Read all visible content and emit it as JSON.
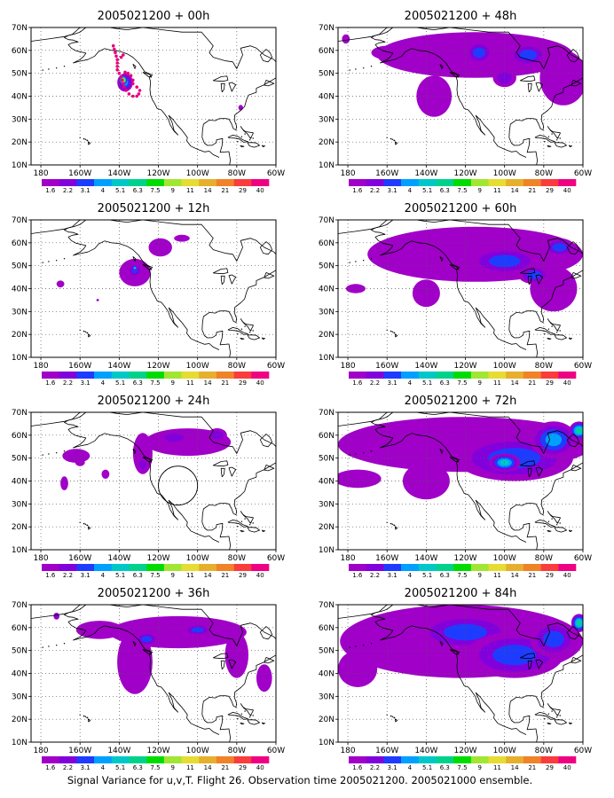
{
  "figure": {
    "caption": "Signal Variance for u,v,T. Flight 26. Observation time 2005021200. 2005021000 ensemble."
  },
  "colorbar": {
    "labels": [
      "1.6",
      "2.2",
      "3.1",
      "4",
      "5.1",
      "6.3",
      "7.5",
      "9",
      "11",
      "14",
      "21",
      "29",
      "40"
    ],
    "colors": [
      "#a000c8",
      "#8200dc",
      "#1e3cff",
      "#00a0ff",
      "#00c8c8",
      "#00d28c",
      "#00dc00",
      "#a0e632",
      "#e6dc32",
      "#e6af2d",
      "#f08228",
      "#fa3c3c",
      "#f00082"
    ]
  },
  "map": {
    "xticks": [
      "180",
      "160W",
      "140W",
      "120W",
      "100W",
      "80W",
      "60W"
    ],
    "yticks": [
      "10N",
      "20N",
      "30N",
      "40N",
      "50N",
      "60N",
      "70N"
    ],
    "lon_range": [
      -185,
      -60
    ],
    "lat_range": [
      10,
      70
    ],
    "grid": "dotted"
  },
  "chart_data": [
    {
      "type": "heatmap",
      "title": "2005021200 + 00h",
      "field": "signal variance",
      "blobs": [
        {
          "lon": -137,
          "lat": 46,
          "rlon": 4,
          "rlat": 4,
          "level": 4
        },
        {
          "lon": -138,
          "lat": 47,
          "rlon": 2,
          "rlat": 2,
          "level": 12
        },
        {
          "lon": -78,
          "lat": 35,
          "rlon": 1.2,
          "rlat": 1.2,
          "level": 1
        }
      ]
    },
    {
      "type": "heatmap",
      "title": "2005021200 + 12h",
      "field": "signal variance",
      "blobs": [
        {
          "lon": -132,
          "lat": 47,
          "rlon": 8,
          "rlat": 6,
          "level": 1
        },
        {
          "lon": -132,
          "lat": 48,
          "rlon": 3.5,
          "rlat": 3,
          "level": 3
        },
        {
          "lon": -132,
          "lat": 49,
          "rlon": 1.5,
          "rlat": 1.2,
          "level": 5
        },
        {
          "lon": -119,
          "lat": 58,
          "rlon": 6,
          "rlat": 4,
          "level": 1
        },
        {
          "lon": -108,
          "lat": 62,
          "rlon": 4,
          "rlat": 1.5,
          "level": 1
        },
        {
          "lon": -170,
          "lat": 42,
          "rlon": 2,
          "rlat": 1.5,
          "level": 1
        },
        {
          "lon": -151,
          "lat": 35,
          "rlon": 0.7,
          "rlat": 0.5,
          "level": 1
        }
      ]
    },
    {
      "type": "heatmap",
      "title": "2005021200 + 24h",
      "field": "signal variance",
      "blobs": [
        {
          "lon": -128,
          "lat": 52,
          "rlon": 5,
          "rlat": 9,
          "level": 1
        },
        {
          "lon": -105,
          "lat": 57,
          "rlon": 22,
          "rlat": 6,
          "level": 1
        },
        {
          "lon": -112,
          "lat": 59,
          "rlon": 8,
          "rlat": 3,
          "level": 2
        },
        {
          "lon": -90,
          "lat": 60,
          "rlon": 5,
          "rlat": 3,
          "level": 2
        },
        {
          "lon": -128,
          "lat": 47,
          "rlon": 3,
          "rlat": 3,
          "level": 2
        },
        {
          "lon": -162,
          "lat": 51,
          "rlon": 7,
          "rlat": 3,
          "level": 1
        },
        {
          "lon": -160,
          "lat": 48,
          "rlon": 2.5,
          "rlat": 1.5,
          "level": 1
        },
        {
          "lon": -168,
          "lat": 39,
          "rlon": 2,
          "rlat": 3,
          "level": 1
        },
        {
          "lon": -147,
          "lat": 43,
          "rlon": 2,
          "rlat": 2,
          "level": 1
        }
      ]
    },
    {
      "type": "heatmap",
      "title": "2005021200 + 36h",
      "field": "signal variance",
      "blobs": [
        {
          "lon": -110,
          "lat": 58,
          "rlon": 35,
          "rlat": 7,
          "level": 1
        },
        {
          "lon": -132,
          "lat": 45,
          "rlon": 9,
          "rlat": 14,
          "level": 1
        },
        {
          "lon": -150,
          "lat": 59,
          "rlon": 12,
          "rlat": 4,
          "level": 1
        },
        {
          "lon": -80,
          "lat": 48,
          "rlon": 6,
          "rlat": 10,
          "level": 1
        },
        {
          "lon": -66,
          "lat": 38,
          "rlon": 4,
          "rlat": 6,
          "level": 1
        },
        {
          "lon": -126,
          "lat": 55,
          "rlon": 6,
          "rlat": 3,
          "level": 3
        },
        {
          "lon": -100,
          "lat": 59,
          "rlon": 7,
          "rlat": 2.5,
          "level": 3
        },
        {
          "lon": -172,
          "lat": 65,
          "rlon": 1.5,
          "rlat": 1.5,
          "level": 2
        }
      ]
    },
    {
      "type": "heatmap",
      "title": "2005021200 + 48h",
      "field": "signal variance",
      "blobs": [
        {
          "lon": -115,
          "lat": 58,
          "rlon": 50,
          "rlat": 10,
          "level": 1
        },
        {
          "lon": -70,
          "lat": 48,
          "rlon": 12,
          "rlat": 12,
          "level": 1
        },
        {
          "lon": -136,
          "lat": 40,
          "rlon": 9,
          "rlat": 9,
          "level": 1
        },
        {
          "lon": -113,
          "lat": 59,
          "rlon": 7,
          "rlat": 5,
          "level": 3
        },
        {
          "lon": -88,
          "lat": 58,
          "rlon": 10,
          "rlat": 5,
          "level": 3
        },
        {
          "lon": -100,
          "lat": 48,
          "rlon": 6,
          "rlat": 4,
          "level": 2
        },
        {
          "lon": -160,
          "lat": 59,
          "rlon": 8,
          "rlat": 3,
          "level": 1
        },
        {
          "lon": -181,
          "lat": 65,
          "rlon": 2,
          "rlat": 2,
          "level": 1
        }
      ]
    },
    {
      "type": "heatmap",
      "title": "2005021200 + 60h",
      "field": "signal variance",
      "blobs": [
        {
          "lon": -115,
          "lat": 55,
          "rlon": 55,
          "rlat": 12,
          "level": 1
        },
        {
          "lon": -75,
          "lat": 40,
          "rlon": 12,
          "rlat": 10,
          "level": 1
        },
        {
          "lon": -140,
          "lat": 38,
          "rlon": 7,
          "rlat": 6,
          "level": 1
        },
        {
          "lon": -100,
          "lat": 52,
          "rlon": 18,
          "rlat": 6,
          "level": 3
        },
        {
          "lon": -72,
          "lat": 58,
          "rlon": 8,
          "rlat": 4,
          "level": 3
        },
        {
          "lon": -85,
          "lat": 46,
          "rlon": 8,
          "rlat": 4,
          "level": 3
        },
        {
          "lon": -176,
          "lat": 40,
          "rlon": 5,
          "rlat": 2,
          "level": 1
        }
      ]
    },
    {
      "type": "heatmap",
      "title": "2005021200 + 72h",
      "field": "signal variance",
      "blobs": [
        {
          "lon": -120,
          "lat": 56,
          "rlon": 65,
          "rlat": 12,
          "level": 1
        },
        {
          "lon": -175,
          "lat": 41,
          "rlon": 12,
          "rlat": 4,
          "level": 1
        },
        {
          "lon": -140,
          "lat": 40,
          "rlon": 12,
          "rlat": 8,
          "level": 1
        },
        {
          "lon": -95,
          "lat": 50,
          "rlon": 30,
          "rlat": 10,
          "level": 3
        },
        {
          "lon": -75,
          "lat": 58,
          "rlon": 12,
          "rlat": 8,
          "level": 4
        },
        {
          "lon": -62,
          "lat": 62,
          "rlon": 5,
          "rlat": 4,
          "level": 6
        },
        {
          "lon": -100,
          "lat": 48,
          "rlon": 8,
          "rlat": 4,
          "level": 5
        }
      ]
    },
    {
      "type": "heatmap",
      "title": "2005021200 + 84h",
      "field": "signal variance",
      "blobs": [
        {
          "lon": -122,
          "lat": 54,
          "rlon": 62,
          "rlat": 16,
          "level": 1
        },
        {
          "lon": -175,
          "lat": 42,
          "rlon": 10,
          "rlat": 8,
          "level": 1
        },
        {
          "lon": -120,
          "lat": 58,
          "rlon": 25,
          "rlat": 8,
          "level": 3
        },
        {
          "lon": -95,
          "lat": 48,
          "rlon": 25,
          "rlat": 10,
          "level": 3
        },
        {
          "lon": -75,
          "lat": 55,
          "rlon": 12,
          "rlat": 8,
          "level": 3
        },
        {
          "lon": -62,
          "lat": 62,
          "rlon": 4,
          "rlat": 4,
          "level": 6
        }
      ]
    }
  ]
}
